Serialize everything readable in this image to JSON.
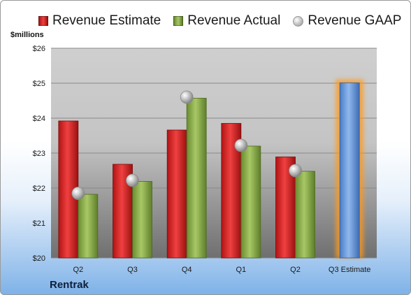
{
  "chart_data": {
    "type": "bar",
    "units_label": "$millions",
    "company": "Rentrak",
    "categories": [
      "Q2",
      "Q3",
      "Q4",
      "Q1",
      "Q2",
      "Q3 Estimate"
    ],
    "yticks": [
      "$20",
      "$21",
      "$22",
      "$23",
      "$24",
      "$25",
      "$26"
    ],
    "ylim": [
      20,
      26
    ],
    "grid": true,
    "legend_position": "top",
    "series": [
      {
        "name": "Revenue Estimate",
        "kind": "bar",
        "color": "#cc1f1f",
        "values": [
          23.92,
          22.68,
          23.66,
          23.85,
          22.89,
          null
        ]
      },
      {
        "name": "Revenue Actual",
        "kind": "bar",
        "color": "#7ea23e",
        "values": [
          21.82,
          22.19,
          24.57,
          23.2,
          22.48,
          null
        ]
      },
      {
        "name": "Revenue GAAP",
        "kind": "marker",
        "color": "#b8b8b8",
        "values": [
          21.85,
          22.22,
          24.6,
          23.22,
          22.5,
          null
        ]
      },
      {
        "name": "Revenue Estimate",
        "kind": "highlight-bar",
        "color": "#5b8fd6",
        "values": [
          null,
          null,
          null,
          null,
          null,
          25.01
        ]
      }
    ]
  }
}
